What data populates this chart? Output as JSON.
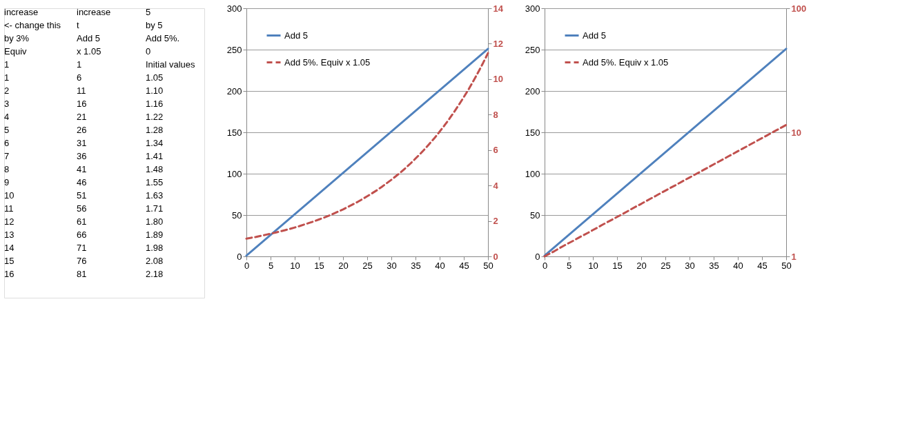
{
  "chart_data": [
    {
      "type": "other",
      "annotations": [
        "increase",
        "increase",
        "5",
        "<- change this",
        "t",
        "by 5",
        "by 3%",
        "Add 5",
        "Add 5%.",
        "Equiv",
        "x 1.05",
        "0",
        "1",
        "1",
        "Initial values",
        "1",
        "6",
        "1.05",
        "2",
        "11",
        "1.10",
        "3",
        "16",
        "1.16",
        "4",
        "21",
        "1.22",
        "5",
        "26",
        "1.28",
        "6",
        "31",
        "1.34",
        "7",
        "36",
        "1.41",
        "8",
        "41",
        "1.48",
        "9",
        "46",
        "1.55",
        "10",
        "51",
        "1.63",
        "11",
        "56",
        "1.71",
        "12",
        "61",
        "1.80",
        "13",
        "66",
        "1.89",
        "14",
        "71",
        "1.98",
        "15",
        "76",
        "2.08",
        "16",
        "81",
        "2.18"
      ]
    },
    {
      "type": "line",
      "x": [
        0,
        1,
        2,
        3,
        4,
        5,
        6,
        7,
        8,
        9,
        10,
        11,
        12,
        13,
        14,
        15,
        16,
        17,
        18,
        19,
        20,
        21,
        22,
        23,
        24,
        25,
        26,
        27,
        28,
        29,
        30,
        31,
        32,
        33,
        34,
        35,
        36,
        37,
        38,
        39,
        40,
        41,
        42,
        43,
        44,
        45,
        46,
        47,
        48,
        49,
        50
      ],
      "xlim": [
        0,
        50
      ],
      "xticks": [
        0,
        5,
        10,
        15,
        20,
        25,
        30,
        35,
        40,
        45,
        50
      ],
      "ylim": [
        0,
        300
      ],
      "yticks": [
        0,
        50,
        100,
        150,
        200,
        250,
        300
      ],
      "y2lim": [
        0,
        14
      ],
      "y2ticks": [
        0,
        2,
        4,
        6,
        8,
        10,
        12,
        14
      ],
      "grid": "y",
      "legend": "top left",
      "series": [
        {
          "name": "Add 5",
          "color": "#4f81bd",
          "line_style": "solid",
          "values": [
            1,
            6,
            11,
            16,
            21,
            26,
            31,
            36,
            41,
            46,
            51,
            56,
            61,
            66,
            71,
            76,
            81,
            86,
            91,
            96,
            101,
            106,
            111,
            116,
            121,
            126,
            131,
            136,
            141,
            146,
            151,
            156,
            161,
            166,
            171,
            176,
            181,
            186,
            191,
            196,
            201,
            206,
            211,
            216,
            221,
            226,
            231,
            236,
            241,
            246,
            251
          ]
        },
        {
          "name": "Add 5%. Equiv x 1.05",
          "color": "#c0504d",
          "line_style": "dashed",
          "axis": "y2",
          "values": [
            1,
            1.05,
            1.1,
            1.16,
            1.22,
            1.28,
            1.34,
            1.41,
            1.48,
            1.55,
            1.63,
            1.71,
            1.8,
            1.89,
            1.98,
            2.08,
            2.18,
            2.29,
            2.41,
            2.53,
            2.65,
            2.79,
            2.93,
            3.07,
            3.23,
            3.39,
            3.56,
            3.73,
            3.92,
            4.12,
            4.32,
            4.54,
            4.76,
            5.0,
            5.25,
            5.52,
            5.79,
            6.08,
            6.39,
            6.7,
            7.04,
            7.39,
            7.76,
            8.15,
            8.56,
            8.99,
            9.43,
            9.91,
            10.4,
            10.92,
            11.47
          ]
        }
      ]
    },
    {
      "type": "line",
      "x": [
        0,
        1,
        2,
        3,
        4,
        5,
        6,
        7,
        8,
        9,
        10,
        11,
        12,
        13,
        14,
        15,
        16,
        17,
        18,
        19,
        20,
        21,
        22,
        23,
        24,
        25,
        26,
        27,
        28,
        29,
        30,
        31,
        32,
        33,
        34,
        35,
        36,
        37,
        38,
        39,
        40,
        41,
        42,
        43,
        44,
        45,
        46,
        47,
        48,
        49,
        50
      ],
      "xlim": [
        0,
        50
      ],
      "xticks": [
        0,
        5,
        10,
        15,
        20,
        25,
        30,
        35,
        40,
        45,
        50
      ],
      "ylim": [
        0,
        300
      ],
      "yticks": [
        0,
        50,
        100,
        150,
        200,
        250,
        300
      ],
      "y2lim": [
        1,
        100
      ],
      "y2ticks": [
        1,
        10,
        100
      ],
      "log": "y2",
      "grid": "y",
      "legend": "top left",
      "series": [
        {
          "name": "Add 5",
          "color": "#4f81bd",
          "line_style": "solid",
          "values": [
            1,
            6,
            11,
            16,
            21,
            26,
            31,
            36,
            41,
            46,
            51,
            56,
            61,
            66,
            71,
            76,
            81,
            86,
            91,
            96,
            101,
            106,
            111,
            116,
            121,
            126,
            131,
            136,
            141,
            146,
            151,
            156,
            161,
            166,
            171,
            176,
            181,
            186,
            191,
            196,
            201,
            206,
            211,
            216,
            221,
            226,
            231,
            236,
            241,
            246,
            251
          ]
        },
        {
          "name": "Add 5%. Equiv x 1.05",
          "color": "#c0504d",
          "line_style": "dashed",
          "axis": "y2",
          "values": [
            1,
            1.05,
            1.1,
            1.16,
            1.22,
            1.28,
            1.34,
            1.41,
            1.48,
            1.55,
            1.63,
            1.71,
            1.8,
            1.89,
            1.98,
            2.08,
            2.18,
            2.29,
            2.41,
            2.53,
            2.65,
            2.79,
            2.93,
            3.07,
            3.23,
            3.39,
            3.56,
            3.73,
            3.92,
            4.12,
            4.32,
            4.54,
            4.76,
            5.0,
            5.25,
            5.52,
            5.79,
            6.08,
            6.39,
            6.7,
            7.04,
            7.39,
            7.76,
            8.15,
            8.56,
            8.99,
            9.43,
            9.91,
            10.4,
            10.92,
            11.47
          ]
        }
      ]
    }
  ]
}
